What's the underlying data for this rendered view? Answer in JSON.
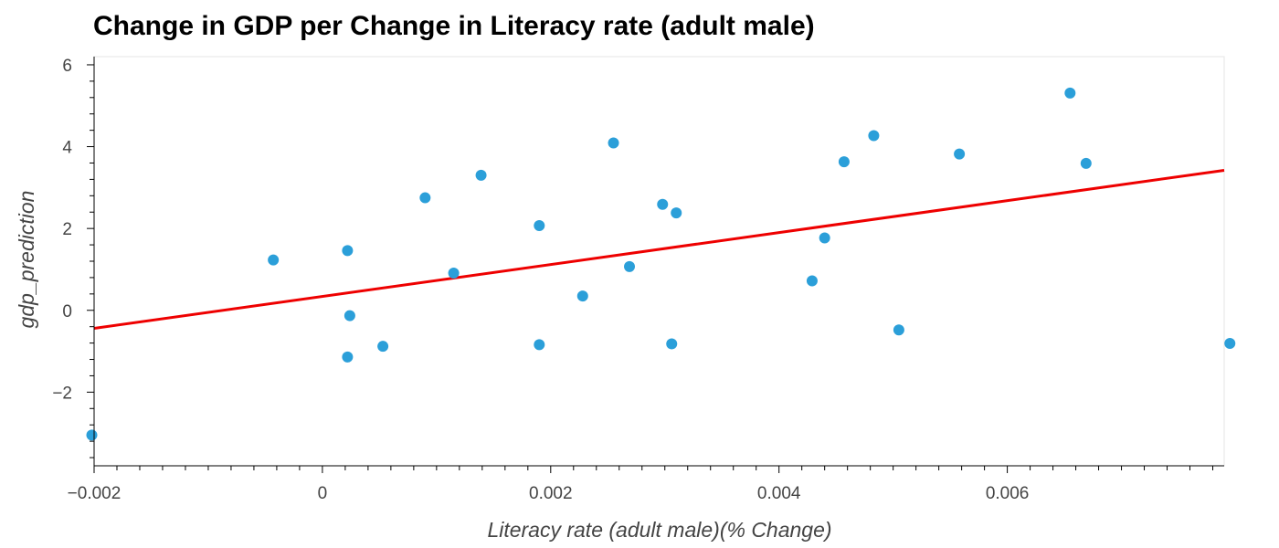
{
  "chart_data": {
    "type": "scatter",
    "title": "Change in GDP per Change in Literacy rate (adult male)",
    "xlabel": "Literacy rate (adult male)(% Change)",
    "ylabel": "gdp_prediction",
    "xlim": [
      -0.002,
      0.0079
    ],
    "ylim": [
      -3.8,
      6.2
    ],
    "x_ticks": [
      {
        "value": -0.002,
        "label": "−0.002"
      },
      {
        "value": 0,
        "label": "0"
      },
      {
        "value": 0.002,
        "label": "0.002"
      },
      {
        "value": 0.004,
        "label": "0.004"
      },
      {
        "value": 0.006,
        "label": "0.006"
      }
    ],
    "y_ticks": [
      {
        "value": -2,
        "label": "−2"
      },
      {
        "value": 0,
        "label": "0"
      },
      {
        "value": 2,
        "label": "2"
      },
      {
        "value": 4,
        "label": "4"
      },
      {
        "value": 6,
        "label": "6"
      }
    ],
    "grid": false,
    "point_color": "#2b9fd9",
    "line_color": "#ee0000",
    "points": [
      {
        "x": -0.00202,
        "y": -3.05
      },
      {
        "x": -0.00043,
        "y": 1.23
      },
      {
        "x": 0.00022,
        "y": 1.46
      },
      {
        "x": 0.00024,
        "y": -0.13
      },
      {
        "x": 0.00022,
        "y": -1.14
      },
      {
        "x": 0.00053,
        "y": -0.88
      },
      {
        "x": 0.0009,
        "y": 2.75
      },
      {
        "x": 0.00115,
        "y": 0.91
      },
      {
        "x": 0.00139,
        "y": 3.3
      },
      {
        "x": 0.0019,
        "y": 2.07
      },
      {
        "x": 0.0019,
        "y": -0.84
      },
      {
        "x": 0.00228,
        "y": 0.35
      },
      {
        "x": 0.00255,
        "y": 4.09
      },
      {
        "x": 0.00269,
        "y": 1.07
      },
      {
        "x": 0.00298,
        "y": 2.59
      },
      {
        "x": 0.00306,
        "y": -0.82
      },
      {
        "x": 0.0031,
        "y": 2.38
      },
      {
        "x": 0.00429,
        "y": 0.72
      },
      {
        "x": 0.0044,
        "y": 1.77
      },
      {
        "x": 0.00457,
        "y": 3.63
      },
      {
        "x": 0.00483,
        "y": 4.27
      },
      {
        "x": 0.00505,
        "y": -0.48
      },
      {
        "x": 0.00558,
        "y": 3.82
      },
      {
        "x": 0.00655,
        "y": 5.31
      },
      {
        "x": 0.00669,
        "y": 3.59
      },
      {
        "x": 0.00795,
        "y": -0.81
      }
    ],
    "regression_line": [
      {
        "x": -0.002,
        "y": -0.44
      },
      {
        "x": 0.0079,
        "y": 3.42
      }
    ]
  }
}
